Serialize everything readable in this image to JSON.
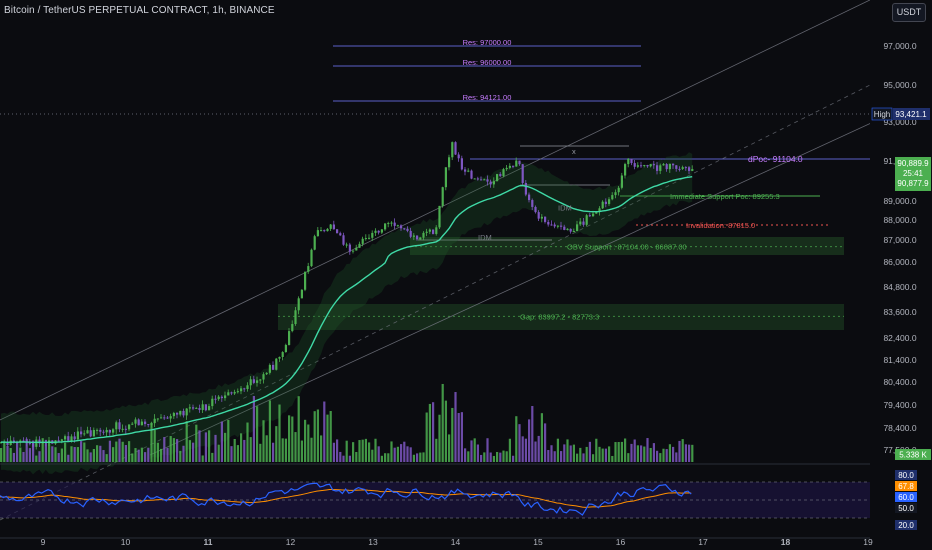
{
  "header": {
    "title": "Bitcoin / TetherUS PERPETUAL CONTRACT, 1h, BINANCE",
    "currency_button": "USDT"
  },
  "colors": {
    "background": "#0b0c10",
    "bull": "#4caf50",
    "bear": "#7e57c2",
    "ema": "#3fd9a6",
    "poc": "#c77dff",
    "rsi": "#2962ff",
    "rsi_ma": "#ff8f00",
    "support_zone": "#2f6f32"
  },
  "chart_data": {
    "type": "candlestick",
    "symbol": "BTCUSDT.P",
    "interval": "1h",
    "exchange": "BINANCE",
    "y_axis": {
      "ylim": [
        77200,
        97900
      ],
      "tick_labels": [
        "97,000.0",
        "95,000.0",
        "93,000.0",
        "91,000.0",
        "89,000.0",
        "88,000.0",
        "87,000.0",
        "86,000.0",
        "84,800.0",
        "83,600.0",
        "82,400.0",
        "81,400.0",
        "80,400.0",
        "79,400.0",
        "78,400.0",
        "77,500.0"
      ]
    },
    "x_axis": {
      "tick_labels": [
        "9",
        "10",
        "11",
        "12",
        "13",
        "14",
        "15",
        "16",
        "17",
        "18",
        "19"
      ],
      "bold": [
        "11",
        "18"
      ]
    },
    "price_path": [
      [
        9.0,
        77800
      ],
      [
        9.7,
        78300
      ],
      [
        10.3,
        78700
      ],
      [
        10.8,
        79200
      ],
      [
        11.2,
        79800
      ],
      [
        11.6,
        80600
      ],
      [
        11.9,
        81600
      ],
      [
        12.1,
        84500
      ],
      [
        12.3,
        87300
      ],
      [
        12.5,
        87700
      ],
      [
        12.7,
        86400
      ],
      [
        12.95,
        87200
      ],
      [
        13.2,
        87900
      ],
      [
        13.5,
        87100
      ],
      [
        13.75,
        87500
      ],
      [
        13.85,
        90200
      ],
      [
        13.95,
        91900
      ],
      [
        14.05,
        90800
      ],
      [
        14.2,
        90200
      ],
      [
        14.4,
        90000
      ],
      [
        14.6,
        90600
      ],
      [
        14.75,
        90900
      ],
      [
        14.85,
        89200
      ],
      [
        15.0,
        88100
      ],
      [
        15.2,
        87700
      ],
      [
        15.4,
        87600
      ],
      [
        15.6,
        88300
      ],
      [
        15.85,
        88900
      ],
      [
        15.95,
        89700
      ],
      [
        16.05,
        90900
      ],
      [
        16.3,
        90700
      ],
      [
        16.55,
        90700
      ],
      [
        16.8,
        90600
      ]
    ],
    "last_price": 90877.9,
    "annotations": [
      {
        "text": "Res: 97000.00",
        "price": 97000
      },
      {
        "text": "Res: 96000.00",
        "price": 96000
      },
      {
        "text": "Res: 94121.00",
        "price": 94121
      },
      {
        "text": "dPoc- 91104.0",
        "price": 91104
      },
      {
        "text": "Immediate Support Poc: 89255.3",
        "price": 89255.3
      },
      {
        "text": "Invalidation: 87815.0",
        "price": 87815
      },
      {
        "text": "OBV Support : 87104.00 - 86087.00",
        "price_range": [
          86087,
          87104
        ]
      },
      {
        "text": "Gap:  83997.2 - 82773.3",
        "price_range": [
          82773.3,
          83997.2
        ]
      },
      {
        "text": "IDM",
        "price": 88650
      },
      {
        "text": "IDM",
        "price": 87100
      },
      {
        "text": "x",
        "price": 91450
      }
    ],
    "high_label": {
      "text": "High",
      "value": "93,421.1",
      "price": 93421.1
    },
    "price_labels": [
      {
        "value": "90,889.9",
        "price": 90889.9
      },
      {
        "value": "25:41",
        "price": 90600
      },
      {
        "value": "90,877.9",
        "price": 90300
      }
    ],
    "volume_label": "5.338 K",
    "rsi": {
      "levels": [
        80.0,
        60.0,
        50.0,
        20.0
      ],
      "labels": [
        "80.0",
        "67.8",
        "60.0",
        "50.0",
        "20.0"
      ],
      "value": 60.0,
      "ma_value": 67.8
    }
  }
}
